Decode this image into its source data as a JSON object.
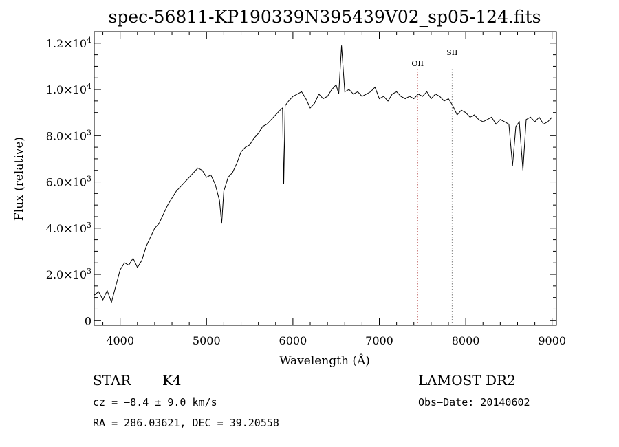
{
  "chart_data": {
    "type": "line",
    "title": "spec-56811-KP190339N395439V02_sp05-124.fits",
    "xlabel": "Wavelength (Å)",
    "ylabel": "Flux (relative)",
    "xlim": [
      3700,
      9050
    ],
    "ylim": [
      -200,
      12500
    ],
    "xticks": [
      {
        "v": 4000,
        "label": "4000"
      },
      {
        "v": 5000,
        "label": "5000"
      },
      {
        "v": 6000,
        "label": "6000"
      },
      {
        "v": 7000,
        "label": "7000"
      },
      {
        "v": 8000,
        "label": "8000"
      },
      {
        "v": 9000,
        "label": "9000"
      }
    ],
    "yticks": [
      {
        "v": 0,
        "mant": "0",
        "exp": ""
      },
      {
        "v": 2000,
        "mant": "2.0×10",
        "exp": "3"
      },
      {
        "v": 4000,
        "mant": "4.0×10",
        "exp": "3"
      },
      {
        "v": 6000,
        "mant": "6.0×10",
        "exp": "3"
      },
      {
        "v": 8000,
        "mant": "8.0×10",
        "exp": "3"
      },
      {
        "v": 10000,
        "mant": "1.0×10",
        "exp": "4"
      },
      {
        "v": 12000,
        "mant": "1.2×10",
        "exp": "4"
      }
    ],
    "grid": false,
    "line_color": "#000000",
    "series": [
      {
        "x": [
          3700,
          3750,
          3800,
          3850,
          3900,
          3950,
          4000,
          4050,
          4100,
          4150,
          4200,
          4250,
          4300,
          4350,
          4400,
          4450,
          4500,
          4550,
          4600,
          4650,
          4700,
          4750,
          4800,
          4850,
          4900,
          4950,
          5000,
          5050,
          5100,
          5150,
          5175,
          5200,
          5250,
          5300,
          5350,
          5400,
          5450,
          5500,
          5550,
          5600,
          5650,
          5700,
          5750,
          5800,
          5850,
          5880,
          5893,
          5910,
          5950,
          6000,
          6050,
          6100,
          6150,
          6200,
          6250,
          6300,
          6350,
          6400,
          6450,
          6500,
          6530,
          6563,
          6600,
          6650,
          6700,
          6750,
          6800,
          6850,
          6900,
          6950,
          7000,
          7050,
          7100,
          7150,
          7200,
          7250,
          7300,
          7350,
          7400,
          7450,
          7500,
          7550,
          7600,
          7650,
          7700,
          7750,
          7800,
          7850,
          7900,
          7950,
          8000,
          8050,
          8100,
          8150,
          8200,
          8250,
          8300,
          8350,
          8400,
          8450,
          8500,
          8542,
          8580,
          8620,
          8662,
          8700,
          8750,
          8800,
          8850,
          8900,
          8950,
          9000
        ],
        "y": [
          1100,
          1250,
          900,
          1300,
          800,
          1500,
          2200,
          2500,
          2400,
          2700,
          2300,
          2600,
          3200,
          3600,
          4000,
          4200,
          4600,
          5000,
          5300,
          5600,
          5800,
          6000,
          6200,
          6400,
          6600,
          6500,
          6200,
          6300,
          5900,
          5200,
          4200,
          5600,
          6200,
          6400,
          6800,
          7300,
          7500,
          7600,
          7900,
          8100,
          8400,
          8500,
          8700,
          8900,
          9100,
          9200,
          5900,
          9300,
          9500,
          9700,
          9800,
          9900,
          9600,
          9200,
          9400,
          9800,
          9600,
          9700,
          10000,
          10200,
          9800,
          11900,
          9900,
          10000,
          9800,
          9900,
          9700,
          9800,
          9900,
          10100,
          9600,
          9700,
          9500,
          9800,
          9900,
          9700,
          9600,
          9700,
          9600,
          9800,
          9700,
          9900,
          9600,
          9800,
          9700,
          9500,
          9600,
          9300,
          8900,
          9100,
          9000,
          8800,
          8900,
          8700,
          8600,
          8700,
          8800,
          8500,
          8700,
          8600,
          8500,
          6700,
          8400,
          8600,
          6500,
          8700,
          8800,
          8600,
          8800,
          8500,
          8600,
          8800
        ]
      }
    ],
    "line_ids": [
      {
        "label": "OII",
        "x": 7444,
        "color": "#c06060"
      },
      {
        "label": "SII",
        "x": 7843,
        "color": "#808080"
      }
    ]
  },
  "info": {
    "class": "STAR",
    "subclass": "K4",
    "survey": "LAMOST DR2",
    "cz": "cz = −8.4 ± 9.0 km/s",
    "obs_date": "Obs−Date: 20140602",
    "radec": "RA = 286.03621, DEC =  39.20558"
  }
}
